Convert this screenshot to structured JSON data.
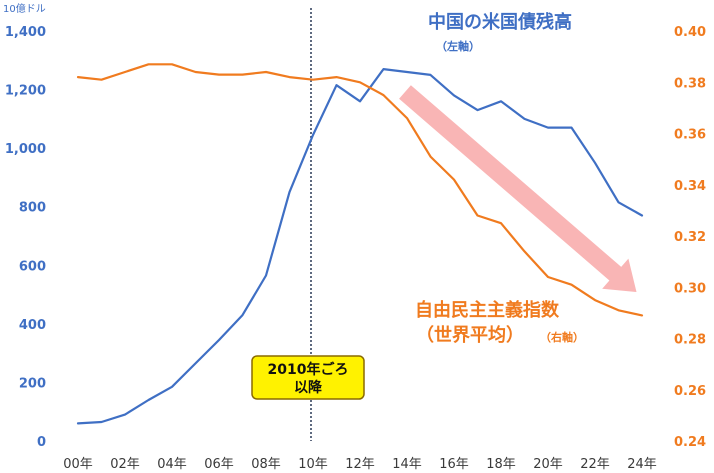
{
  "chart_data": {
    "type": "line",
    "x": [
      "00年",
      "01年",
      "02年",
      "03年",
      "04年",
      "05年",
      "06年",
      "07年",
      "08年",
      "09年",
      "10年",
      "11年",
      "12年",
      "13年",
      "14年",
      "15年",
      "16年",
      "17年",
      "18年",
      "19年",
      "20年",
      "21年",
      "22年",
      "23年",
      "24年"
    ],
    "x_tick_labels": [
      "00年",
      "02年",
      "04年",
      "06年",
      "08年",
      "10年",
      "12年",
      "14年",
      "16年",
      "18年",
      "20年",
      "22年",
      "24年"
    ],
    "left_axis": {
      "unit_label": "10億ドル",
      "ylim": [
        0,
        1400
      ],
      "ticks": [
        0,
        200,
        400,
        600,
        800,
        1000,
        1200,
        1400
      ],
      "tick_labels": [
        "0",
        "200",
        "400",
        "600",
        "800",
        "1,000",
        "1,200",
        "1,400"
      ]
    },
    "right_axis": {
      "ylim": [
        0.24,
        0.4
      ],
      "ticks": [
        0.24,
        0.26,
        0.28,
        0.3,
        0.32,
        0.34,
        0.36,
        0.38,
        0.4
      ],
      "tick_labels": [
        "0.24",
        "0.26",
        "0.28",
        "0.30",
        "0.32",
        "0.34",
        "0.36",
        "0.38",
        "0.40"
      ]
    },
    "series": [
      {
        "name": "中国の米国債残高",
        "axis_note": "（左軸）",
        "axis": "left",
        "color": "#3f6fc4",
        "values": [
          60,
          65,
          90,
          140,
          185,
          265,
          345,
          430,
          565,
          850,
          1045,
          1215,
          1160,
          1270,
          1260,
          1250,
          1180,
          1130,
          1160,
          1100,
          1070,
          1070,
          950,
          815,
          770
        ]
      },
      {
        "name_line1": "自由民主主義指数",
        "name_line2": "（世界平均）",
        "axis_note": "（右軸）",
        "axis": "right",
        "color": "#f07b1f",
        "values": [
          0.382,
          0.381,
          0.384,
          0.387,
          0.387,
          0.384,
          0.383,
          0.383,
          0.384,
          0.382,
          0.381,
          0.382,
          0.38,
          0.375,
          0.366,
          0.351,
          0.342,
          0.328,
          0.325,
          0.314,
          0.304,
          0.301,
          0.295,
          0.291,
          0.289
        ]
      }
    ],
    "vline": {
      "x_index": 10,
      "style": "dotted"
    },
    "callout": {
      "line1": "2010年ごろ",
      "line2": "以降",
      "bg": "#fff200",
      "border": "#8a6a00"
    },
    "trend_arrow": {
      "color": "#f9b5b5",
      "from_index": 14,
      "to_index": 23
    },
    "grid": false,
    "legend": "inline-annotations"
  }
}
